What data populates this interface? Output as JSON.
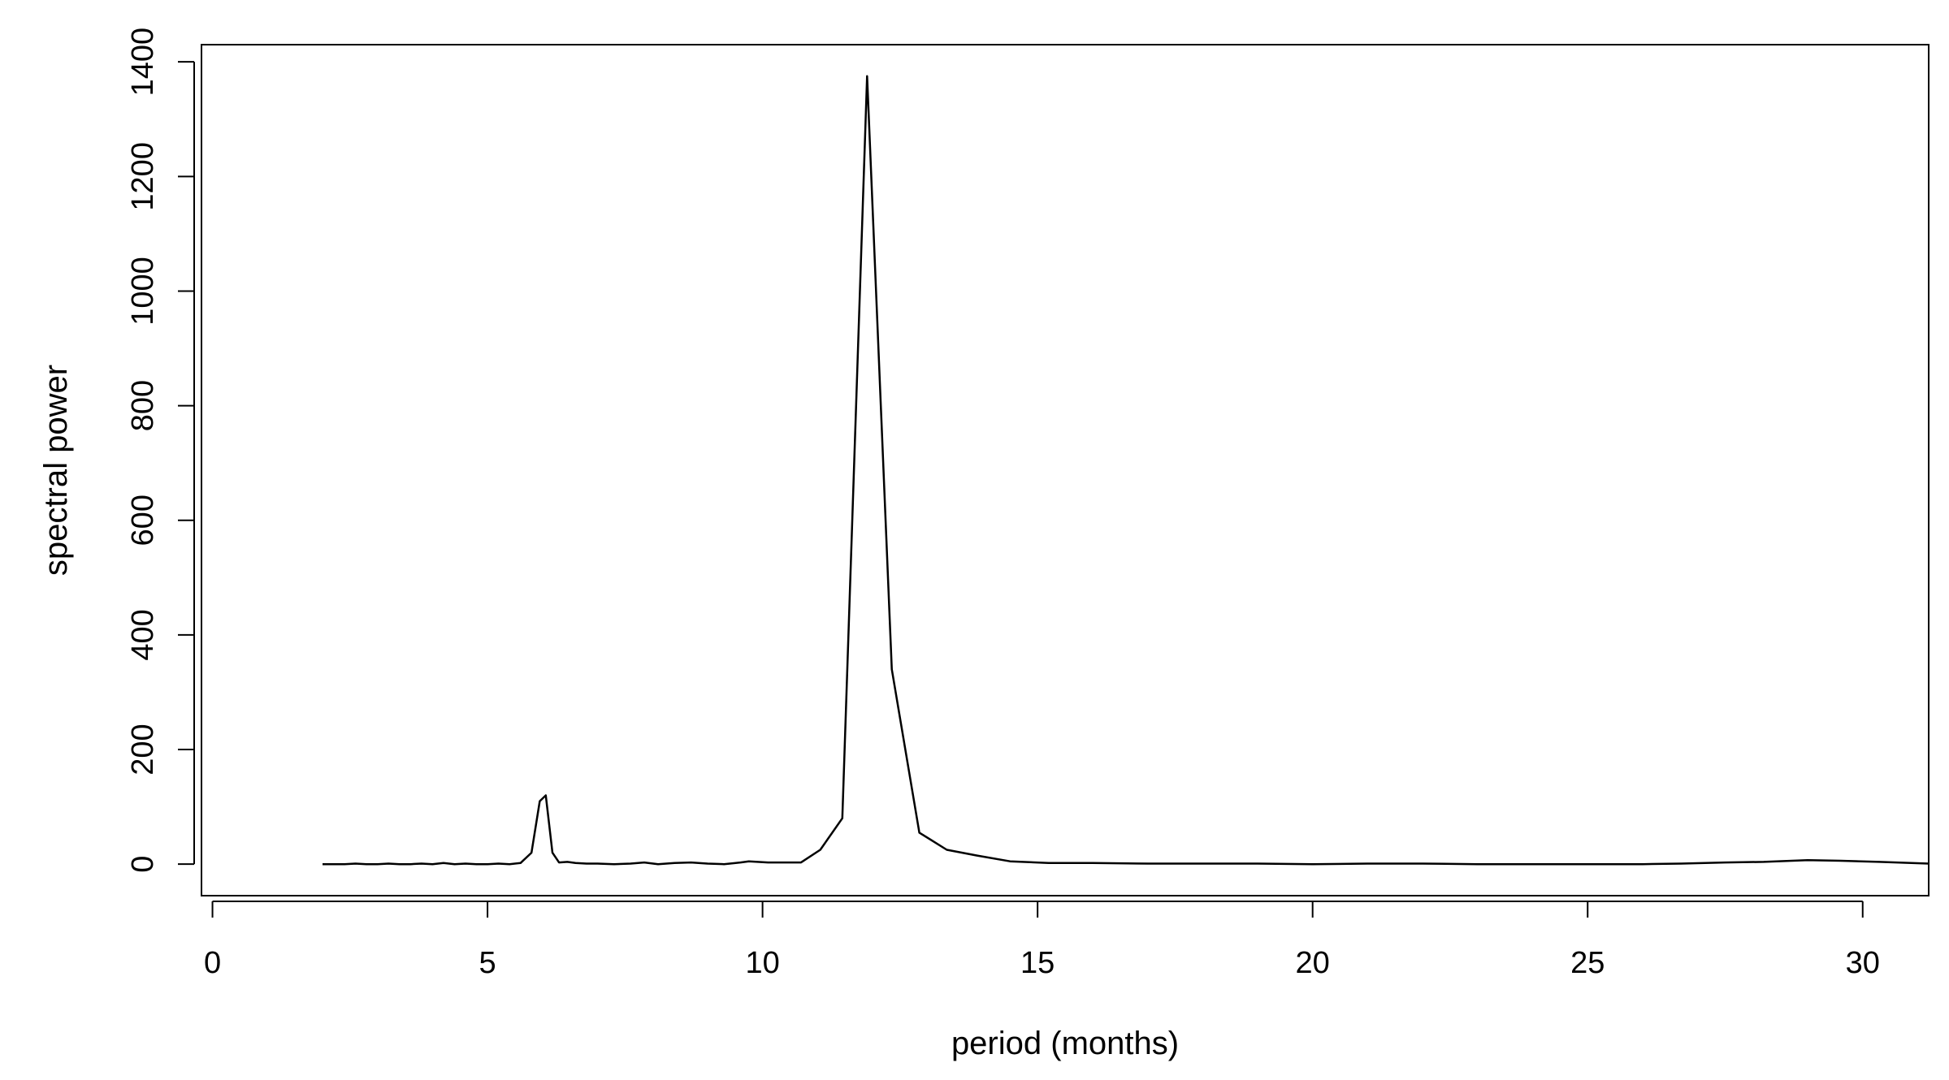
{
  "chart_data": {
    "type": "line",
    "title": "",
    "xlabel": "period (months)",
    "ylabel": "spectral power",
    "xlim": [
      -0.2,
      31.2
    ],
    "ylim": [
      -55,
      1430
    ],
    "x_ticks": [
      0,
      5,
      10,
      15,
      20,
      25,
      30
    ],
    "y_ticks": [
      0,
      200,
      400,
      600,
      800,
      1000,
      1200,
      1400
    ],
    "grid": false,
    "legend": "none",
    "line_color": "#000000",
    "series": [
      {
        "x": [
          2.0,
          2.2,
          2.4,
          2.6,
          2.8,
          3.0,
          3.2,
          3.4,
          3.6,
          3.8,
          4.0,
          4.2,
          4.4,
          4.6,
          4.8,
          5.0,
          5.2,
          5.4,
          5.6,
          5.8,
          5.95,
          6.06,
          6.18,
          6.3,
          6.45,
          6.6,
          6.8,
          7.0,
          7.3,
          7.6,
          7.85,
          8.1,
          8.4,
          8.7,
          9.0,
          9.3,
          9.6,
          9.75,
          10.1,
          10.7,
          11.05,
          11.45,
          11.9,
          12.35,
          12.85,
          13.35,
          13.9,
          14.5,
          15.2,
          16.0,
          17.0,
          18.0,
          19.0,
          20.0,
          21.0,
          22.0,
          23.0,
          24.0,
          25.0,
          26.0,
          26.7,
          27.5,
          28.2,
          29.0,
          29.6,
          30.3,
          31.2
        ],
        "y": [
          0,
          0,
          0,
          1,
          0,
          0,
          1,
          0,
          0,
          1,
          0,
          2,
          0,
          1,
          0,
          0,
          1,
          0,
          2,
          20,
          110,
          120,
          20,
          3,
          4,
          2,
          1,
          1,
          0,
          1,
          3,
          0,
          2,
          3,
          1,
          0,
          3,
          5,
          3,
          3,
          25,
          80,
          1375,
          340,
          55,
          25,
          15,
          5,
          2,
          2,
          1,
          1,
          1,
          0,
          1,
          1,
          0,
          0,
          0,
          0,
          1,
          3,
          4,
          7,
          6,
          4,
          1
        ]
      }
    ]
  }
}
